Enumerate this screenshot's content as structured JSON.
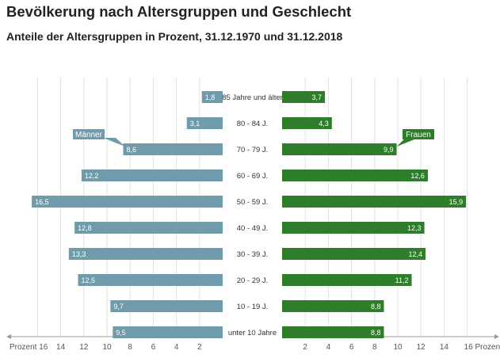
{
  "title": "Bevölkerung nach Altersgruppen und Geschlecht",
  "subtitle": "Anteile der Altersgruppen in Prozent, 31.12.1970 und 31.12.2018",
  "chart_data": {
    "type": "bar",
    "orientation": "horizontal-population-pyramid",
    "categories": [
      "85 Jahre und älter",
      "80 - 84 J.",
      "70 - 79 J.",
      "60 - 69 J.",
      "50 - 59 J.",
      "40 - 49 J.",
      "30 - 39 J.",
      "20 - 29 J.",
      "10 - 19 J.",
      "unter 10 Jahre"
    ],
    "series": [
      {
        "name": "Männer",
        "side": "left",
        "color": "#6f9bab",
        "values": [
          1.8,
          3.1,
          8.6,
          12.2,
          16.5,
          12.8,
          13.3,
          12.5,
          9.7,
          9.5
        ],
        "labels": [
          "1,8",
          "3,1",
          "8,6",
          "12,2",
          "16,5",
          "12,8",
          "13,3",
          "12,5",
          "9,7",
          "9,5"
        ]
      },
      {
        "name": "Frauen",
        "side": "right",
        "color": "#2e7d2a",
        "values": [
          3.7,
          4.3,
          9.9,
          12.6,
          15.9,
          12.3,
          12.4,
          11.2,
          8.8,
          8.8
        ],
        "labels": [
          "3,7",
          "4,3",
          "9,9",
          "12,6",
          "15,9",
          "12,3",
          "12,4",
          "11,2",
          "8,8",
          "8,8"
        ]
      }
    ],
    "xlim": [
      0,
      16
    ],
    "left_axis_ticks": [
      "Prozent 16",
      "14",
      "12",
      "10",
      "8",
      "6",
      "4",
      "2"
    ],
    "right_axis_ticks": [
      "2",
      "4",
      "6",
      "8",
      "10",
      "12",
      "14",
      "16 Prozent"
    ],
    "tick_values": [
      16,
      14,
      12,
      10,
      8,
      6,
      4,
      2
    ],
    "grid": true
  }
}
